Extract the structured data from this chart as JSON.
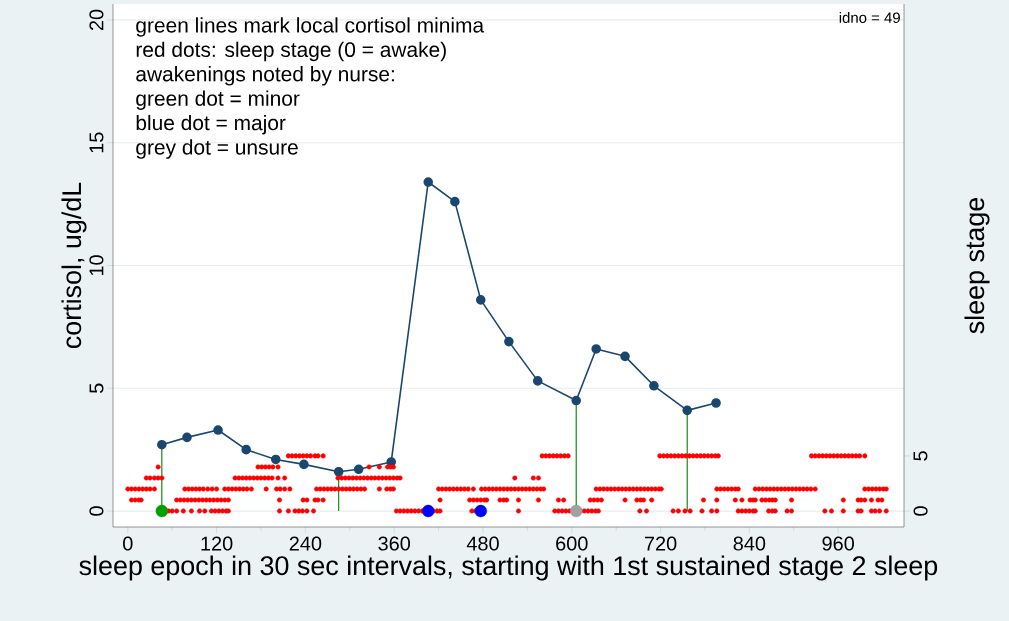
{
  "chart_data": {
    "type": "line",
    "xlabel": "sleep epoch in 30 sec intervals, starting with 1st sustained stage 2 sleep",
    "ylabel": "cortisol, ug/dL",
    "y2label": "sleep stage",
    "annotations": [
      "green lines mark local cortisol minima",
      "red dots: sleep stage (0 = awake)",
      "awakenings noted by nurse:",
      "green dot = minor",
      "blue dot = major",
      "grey dot = unsure",
      "idno = 49"
    ],
    "xlim": [
      -20,
      1049
    ],
    "xticks": [
      0,
      120,
      240,
      360,
      480,
      600,
      720,
      840,
      960
    ],
    "ylim": [
      -0.65,
      20.65
    ],
    "yticks": [
      0,
      5,
      10,
      15,
      20
    ],
    "y2lim": [
      -1.45,
      46
    ],
    "y2ticks": [
      0,
      5
    ],
    "grid": "y",
    "series": [
      {
        "color": "#1a476f",
        "marker": "circle",
        "x": [
          46,
          80,
          122,
          160,
          200,
          238,
          285,
          312,
          356,
          406,
          442,
          477,
          515,
          554,
          606,
          633,
          672,
          711,
          756,
          795
        ],
        "values": [
          2.7,
          3.0,
          3.3,
          2.5,
          2.1,
          1.9,
          1.6,
          1.7,
          2.0,
          13.4,
          12.6,
          8.6,
          6.9,
          5.3,
          4.5,
          6.6,
          6.3,
          5.1,
          4.1,
          4.4
        ]
      },
      {
        "color": "#008000",
        "marker": "none",
        "x": [
          46,
          46
        ],
        "values": [
          0,
          2.7
        ]
      },
      {
        "color": "#008000",
        "marker": "none",
        "x": [
          285,
          285
        ],
        "values": [
          0,
          1.6
        ]
      },
      {
        "color": "#008000",
        "marker": "none",
        "x": [
          606,
          606
        ],
        "values": [
          0,
          4.5
        ]
      },
      {
        "color": "#008000",
        "marker": "none",
        "x": [
          756,
          756
        ],
        "values": [
          0,
          4.1
        ]
      },
      {
        "type": "scatter",
        "axis": "y2",
        "color": "#ff0000",
        "marker": "circle",
        "x": [
          55,
          60,
          66,
          75,
          86,
          97,
          104,
          113,
          118,
          123,
          128,
          133,
          136,
          205,
          217,
          226,
          231,
          236,
          242,
          251,
          363,
          368,
          373,
          378,
          383,
          388,
          393,
          398,
          413,
          418,
          422,
          465,
          470,
          528,
          577,
          582,
          587,
          592,
          597,
          612,
          617,
          622,
          627,
          632,
          636,
          692,
          701,
          737,
          744,
          753,
          760,
          776,
          789,
          796,
          825,
          830,
          835,
          840,
          845,
          848,
          866,
          871,
          875,
          891,
          897,
          942,
          951,
          967,
          987,
          991,
          1005,
          1010,
          1016,
          1025,
          5,
          10,
          15,
          18,
          66,
          71,
          76,
          81,
          86,
          91,
          96,
          101,
          106,
          111,
          116,
          121,
          126,
          131,
          136,
          205,
          237,
          242,
          253,
          257,
          264,
          422,
          462,
          467,
          472,
          477,
          482,
          485,
          503,
          508,
          512,
          528,
          555,
          582,
          589,
          625,
          630,
          635,
          640,
          672,
          688,
          693,
          697,
          708,
          778,
          796,
          821,
          830,
          841,
          845,
          848,
          857,
          862,
          867,
          871,
          875,
          897,
          967,
          987,
          991,
          996,
          1005,
          1014,
          1019,
          0,
          5,
          10,
          15,
          20,
          25,
          30,
          36,
          77,
          82,
          87,
          92,
          97,
          102,
          108,
          114,
          120,
          131,
          136,
          141,
          146,
          151,
          156,
          161,
          167,
          187,
          201,
          206,
          212,
          219,
          255,
          260,
          265,
          270,
          275,
          280,
          285,
          290,
          295,
          300,
          305,
          310,
          315,
          320,
          340,
          350,
          355,
          359,
          420,
          425,
          430,
          435,
          440,
          445,
          450,
          455,
          460,
          467,
          478,
          483,
          488,
          493,
          498,
          503,
          508,
          513,
          518,
          523,
          528,
          533,
          538,
          543,
          548,
          553,
          558,
          562,
          633,
          638,
          643,
          648,
          653,
          658,
          663,
          668,
          673,
          678,
          683,
          688,
          693,
          698,
          703,
          708,
          713,
          718,
          721,
          796,
          801,
          806,
          811,
          816,
          821,
          825,
          848,
          853,
          858,
          863,
          868,
          873,
          878,
          883,
          888,
          893,
          898,
          903,
          908,
          913,
          918,
          923,
          929,
          996,
          1001,
          1006,
          1011,
          1016,
          1021,
          1025,
          25,
          30,
          36,
          41,
          46,
          145,
          150,
          155,
          160,
          165,
          170,
          175,
          180,
          185,
          190,
          195,
          203,
          212,
          284,
          289,
          294,
          299,
          304,
          309,
          314,
          319,
          324,
          329,
          334,
          339,
          344,
          349,
          354,
          359,
          364,
          368,
          523,
          548,
          555,
          41,
          176,
          181,
          186,
          191,
          196,
          203,
          326,
          340,
          351,
          355,
          359,
          217,
          222,
          227,
          232,
          237,
          242,
          247,
          253,
          257,
          264,
          560,
          565,
          570,
          575,
          580,
          585,
          590,
          595,
          719,
          724,
          729,
          734,
          739,
          744,
          749,
          754,
          759,
          764,
          769,
          774,
          779,
          784,
          789,
          794,
          798,
          924,
          929,
          934,
          939,
          944,
          949,
          954,
          959,
          964,
          969,
          974,
          979,
          984,
          989,
          996
        ],
        "values": [
          0,
          0,
          0,
          0,
          0,
          0,
          0,
          0,
          0,
          0,
          0,
          0,
          0,
          0,
          0,
          0,
          0,
          0,
          0,
          0,
          0,
          0,
          0,
          0,
          0,
          0,
          0,
          0,
          0,
          0,
          0,
          0,
          0,
          0,
          0,
          0,
          0,
          0,
          0,
          0,
          0,
          0,
          0,
          0,
          0,
          0,
          0,
          0,
          0,
          0,
          0,
          0,
          0,
          0,
          0,
          0,
          0,
          0,
          0,
          0,
          0,
          0,
          0,
          0,
          0,
          0,
          0,
          0,
          0,
          0,
          0,
          0,
          0,
          0,
          1,
          1,
          1,
          1,
          1,
          1,
          1,
          1,
          1,
          1,
          1,
          1,
          1,
          1,
          1,
          1,
          1,
          1,
          1,
          1,
          1,
          1,
          1,
          1,
          1,
          1,
          1,
          1,
          1,
          1,
          1,
          1,
          1,
          1,
          1,
          1,
          1,
          1,
          1,
          1,
          1,
          1,
          1,
          1,
          1,
          1,
          1,
          1,
          1,
          1,
          1,
          1,
          1,
          1,
          1,
          1,
          1,
          1,
          1,
          1,
          1,
          1,
          1,
          1,
          1,
          1,
          1,
          1,
          2,
          2,
          2,
          2,
          2,
          2,
          2,
          2,
          2,
          2,
          2,
          2,
          2,
          2,
          2,
          2,
          2,
          2,
          2,
          2,
          2,
          2,
          2,
          2,
          2,
          2,
          2,
          2,
          2,
          2,
          2,
          2,
          2,
          2,
          2,
          2,
          2,
          2,
          2,
          2,
          2,
          2,
          2,
          2,
          2,
          2,
          2,
          2,
          2,
          2,
          2,
          2,
          2,
          2,
          2,
          2,
          2,
          2,
          2,
          2,
          2,
          2,
          2,
          2,
          2,
          2,
          2,
          2,
          2,
          2,
          2,
          2,
          2,
          2,
          2,
          2,
          2,
          2,
          2,
          2,
          2,
          2,
          2,
          2,
          2,
          2,
          2,
          2,
          2,
          2,
          2,
          2,
          2,
          2,
          2,
          2,
          2,
          2,
          2,
          2,
          2,
          2,
          2,
          2,
          2,
          2,
          2,
          2,
          2,
          2,
          2,
          2,
          2,
          2,
          2,
          2,
          2,
          2,
          2,
          2,
          2,
          2,
          2,
          2,
          2,
          2,
          3,
          3,
          3,
          3,
          3,
          3,
          3,
          3,
          3,
          3,
          3,
          3,
          3,
          3,
          3,
          3,
          3,
          3,
          3,
          3,
          3,
          3,
          3,
          3,
          3,
          3,
          3,
          3,
          3,
          3,
          3,
          3,
          3,
          3,
          3,
          3,
          3,
          3,
          3,
          4,
          4,
          4,
          4,
          4,
          4,
          4,
          4,
          4,
          4,
          4,
          4,
          5,
          5,
          5,
          5,
          5,
          5,
          5,
          5,
          5,
          5,
          5,
          5,
          5,
          5,
          5,
          5,
          5,
          5,
          5,
          5,
          5,
          5,
          5,
          5,
          5,
          5,
          5,
          5,
          5,
          5,
          5,
          5,
          5,
          5,
          5,
          5,
          5,
          5,
          5,
          5,
          5,
          5,
          5,
          5,
          5,
          5,
          5,
          5,
          5,
          5
        ]
      },
      {
        "type": "scatter",
        "axis": "y2",
        "marker": "circle",
        "colors": [
          "#00a000",
          "#0000ff",
          "#0000ff",
          "#a0a0a0"
        ],
        "x": [
          46,
          406,
          477,
          606
        ],
        "values": [
          0,
          0,
          0,
          0
        ]
      }
    ]
  }
}
